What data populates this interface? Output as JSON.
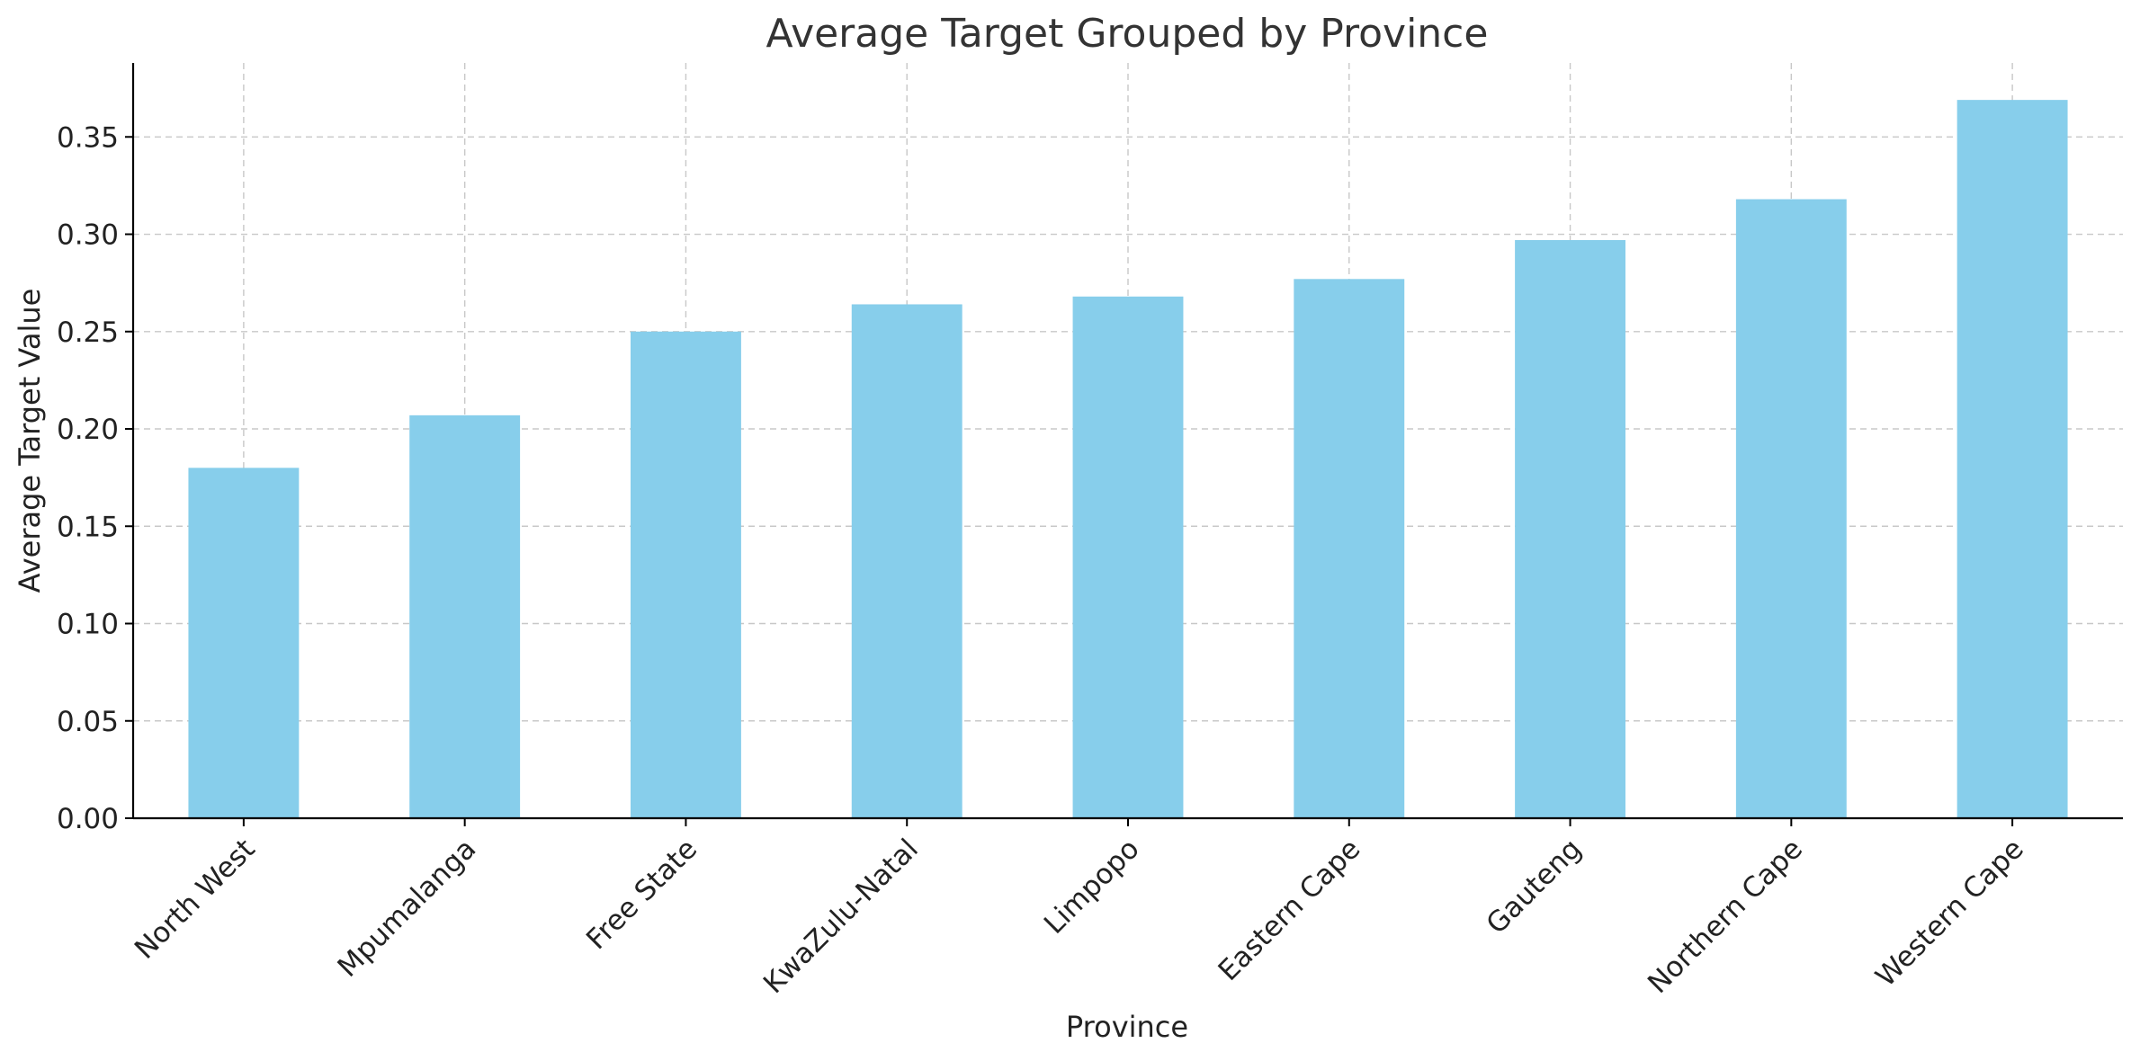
{
  "chart_data": {
    "type": "bar",
    "title": "Average Target Grouped by Province",
    "xlabel": "Province",
    "ylabel": "Average Target Value",
    "categories": [
      "North West",
      "Mpumalanga",
      "Free State",
      "KwaZulu-Natal",
      "Limpopo",
      "Eastern Cape",
      "Gauteng",
      "Northern Cape",
      "Western Cape"
    ],
    "values": [
      0.18,
      0.207,
      0.25,
      0.264,
      0.268,
      0.277,
      0.297,
      0.318,
      0.369
    ],
    "ylim": [
      0,
      0.388
    ],
    "yticks": [
      "0.00",
      "0.05",
      "0.10",
      "0.15",
      "0.20",
      "0.25",
      "0.30",
      "0.35"
    ],
    "grid": true,
    "bar_color": "#87CEEB"
  }
}
